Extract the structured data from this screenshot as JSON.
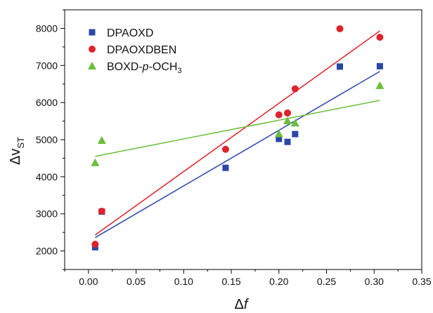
{
  "chart_data": {
    "type": "scatter",
    "xlabel": "Δf",
    "ylabel": "Δv_ST",
    "xlim": [
      -0.025,
      0.35
    ],
    "ylim": [
      1500,
      8500
    ],
    "xticks": [
      "0.00",
      "0.05",
      "0.10",
      "0.15",
      "0.20",
      "0.25",
      "0.30",
      "0.35"
    ],
    "yticks": [
      "2000",
      "3000",
      "4000",
      "5000",
      "6000",
      "7000",
      "8000"
    ],
    "legend_position": "top-left",
    "series": [
      {
        "name": "DPAOXD",
        "marker": "square",
        "color": "#2a47a8",
        "x": [
          0.007,
          0.014,
          0.144,
          0.2,
          0.209,
          0.217,
          0.264,
          0.306
        ],
        "y": [
          2100,
          3060,
          4240,
          5020,
          4940,
          5150,
          6970,
          6980
        ],
        "fit": [
          [
            0.007,
            2360
          ],
          [
            0.306,
            6840
          ]
        ]
      },
      {
        "name": "DPAOXDBEN",
        "marker": "circle",
        "color": "#e0222a",
        "x": [
          0.007,
          0.014,
          0.144,
          0.2,
          0.209,
          0.217,
          0.264,
          0.306
        ],
        "y": [
          2180,
          3070,
          4740,
          5670,
          5720,
          6370,
          7990,
          7760
        ],
        "fit": [
          [
            0.007,
            2430
          ],
          [
            0.306,
            7930
          ]
        ]
      },
      {
        "name": "BOXD-p-OCH3",
        "name_parts": {
          "base": "BOXD-",
          "italic": "p",
          "mid": "-OCH",
          "sub": "3"
        },
        "marker": "triangle",
        "color": "#6abf3a",
        "x": [
          0.007,
          0.014,
          0.2,
          0.209,
          0.217,
          0.306
        ],
        "y": [
          4380,
          4980,
          5160,
          5510,
          5450,
          6460
        ],
        "fit": [
          [
            0.007,
            4550
          ],
          [
            0.306,
            6060
          ]
        ]
      }
    ]
  }
}
